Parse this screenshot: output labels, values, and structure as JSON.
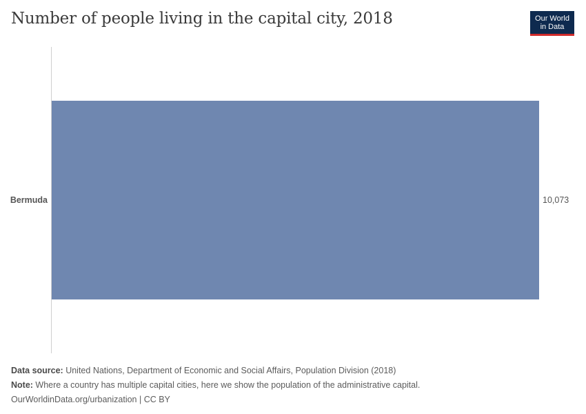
{
  "header": {
    "title": "Number of people living in the capital city, 2018"
  },
  "logo": {
    "line1": "Our World",
    "line2": "in Data",
    "bg_color": "#0e2a4f",
    "accent_color": "#d02b2b"
  },
  "chart_data": {
    "type": "bar",
    "orientation": "horizontal",
    "title": "Number of people living in the capital city, 2018",
    "categories": [
      "Bermuda"
    ],
    "values": [
      10073
    ],
    "value_labels": [
      "10,073"
    ],
    "xlim": [
      0,
      10073
    ],
    "grid": false,
    "bar_color": "#6f87b0"
  },
  "footer": {
    "source_label": "Data source:",
    "source_text": " United Nations, Department of Economic and Social Affairs, Population Division (2018)",
    "note_label": "Note:",
    "note_text": " Where a country has multiple capital cities, here we show the population of the administrative capital.",
    "credit": "OurWorldinData.org/urbanization | CC BY"
  }
}
